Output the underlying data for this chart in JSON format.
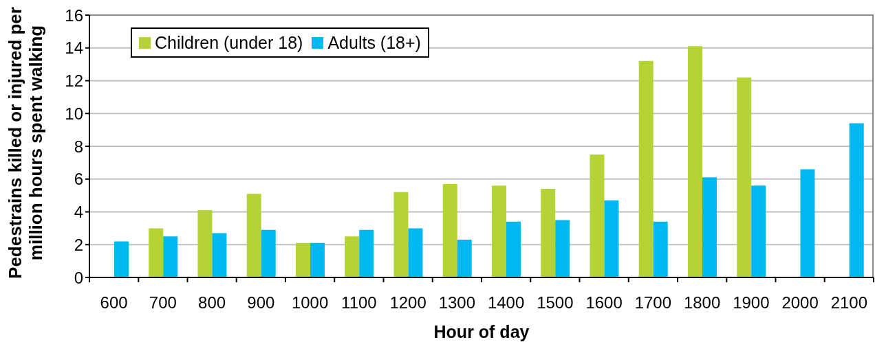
{
  "chart_data": {
    "type": "bar",
    "xlabel": "Hour of day",
    "ylabel": "Pedestrains killed or injured per million hours spent walking",
    "categories": [
      "600",
      "700",
      "800",
      "900",
      "1000",
      "1100",
      "1200",
      "1300",
      "1400",
      "1500",
      "1600",
      "1700",
      "1800",
      "1900",
      "2000",
      "2100"
    ],
    "series": [
      {
        "name": "Children (under 18)",
        "color": "#b4d335",
        "values": [
          null,
          3.0,
          4.1,
          5.1,
          2.1,
          2.5,
          5.2,
          5.7,
          5.6,
          5.4,
          7.5,
          13.2,
          14.1,
          12.2,
          null,
          null
        ]
      },
      {
        "name": "Adults (18+)",
        "color": "#00b8f0",
        "values": [
          2.2,
          2.5,
          2.7,
          2.9,
          2.1,
          2.9,
          3.0,
          2.3,
          3.4,
          3.5,
          4.7,
          3.4,
          6.1,
          5.6,
          6.6,
          9.4
        ]
      }
    ],
    "ylim": [
      0,
      16
    ],
    "yticks": [
      0,
      2,
      4,
      6,
      8,
      10,
      12,
      14,
      16
    ],
    "grid": "y",
    "legend": "top left"
  }
}
